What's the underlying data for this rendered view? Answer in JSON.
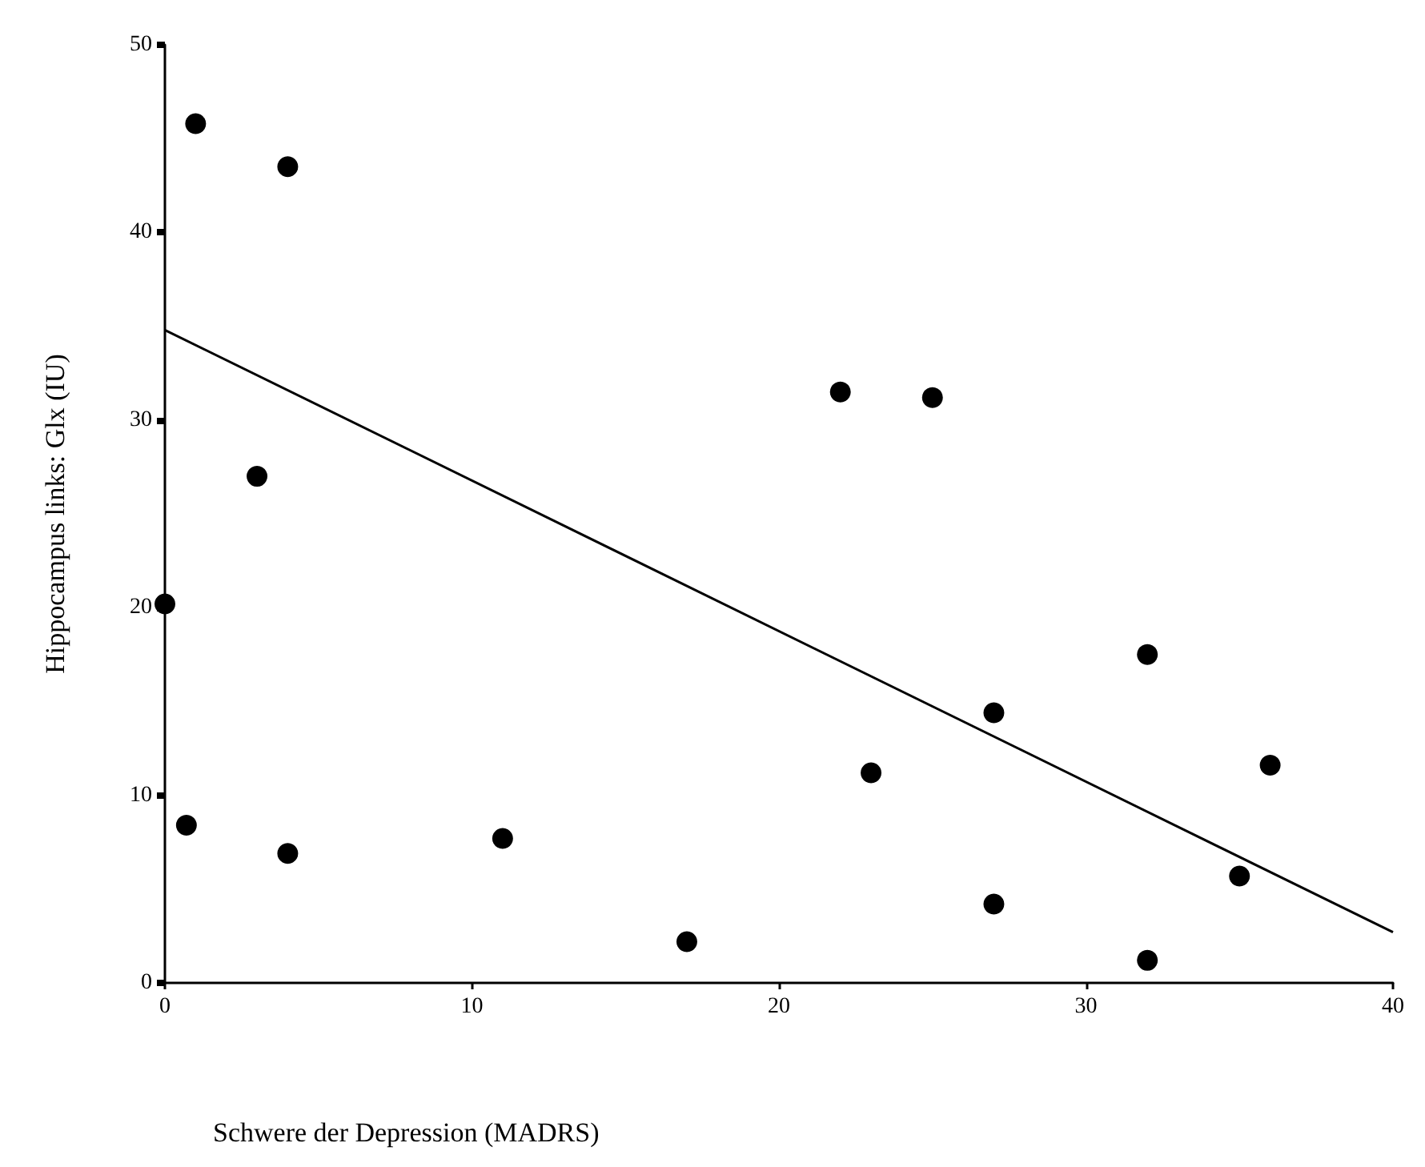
{
  "chart_data": {
    "type": "scatter",
    "xlabel": "Schwere der Depression (MADRS)",
    "ylabel": "Hippocampus links: Glx (IU)",
    "xlim": [
      0,
      40
    ],
    "xticks": [
      0,
      10,
      20,
      30,
      40
    ],
    "ylim": [
      0,
      50
    ],
    "yticks": [
      0,
      10,
      20,
      30,
      40,
      50
    ],
    "grid": false,
    "marker": "circle",
    "series": [
      {
        "color": "#000000",
        "x": [
          1,
          4,
          3,
          0,
          0.7,
          4,
          11,
          17,
          22,
          23,
          25,
          27,
          27,
          32,
          32,
          35,
          36
        ],
        "values": [
          45.8,
          43.5,
          27,
          20.2,
          8.4,
          6.9,
          7.7,
          2.2,
          31.5,
          11.2,
          31.2,
          14.4,
          4.2,
          17.5,
          1.2,
          5.7,
          11.6
        ]
      },
      {
        "type": "line",
        "color": "#000000",
        "x": [
          0,
          40
        ],
        "values": [
          34.8,
          2.7
        ],
        "marker": "none",
        "line_style": "solid"
      }
    ]
  }
}
